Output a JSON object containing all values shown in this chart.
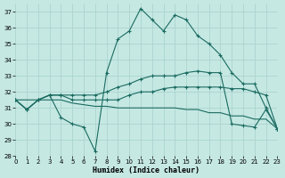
{
  "xlabel": "Humidex (Indice chaleur)",
  "bg_color": "#c5e8e3",
  "grid_color": "#a8d0cc",
  "line_color": "#1a6b60",
  "xlim": [
    0,
    23
  ],
  "ylim": [
    28,
    37.5
  ],
  "yticks": [
    28,
    29,
    30,
    31,
    32,
    33,
    34,
    35,
    36,
    37
  ],
  "xticks": [
    0,
    1,
    2,
    3,
    4,
    5,
    6,
    7,
    8,
    9,
    10,
    11,
    12,
    13,
    14,
    15,
    16,
    17,
    18,
    19,
    20,
    21,
    22,
    23
  ],
  "lines": [
    {
      "x": [
        0,
        1,
        2,
        3,
        4,
        5,
        6,
        7,
        8,
        9,
        10,
        11,
        12,
        13,
        14,
        15,
        16,
        17,
        18,
        19,
        20,
        21,
        22,
        23
      ],
      "y": [
        31.5,
        30.9,
        31.5,
        31.8,
        30.4,
        30.0,
        29.8,
        28.3,
        33.2,
        35.3,
        35.8,
        37.2,
        36.5,
        35.8,
        36.8,
        36.5,
        35.5,
        35.0,
        34.3,
        33.2,
        32.5,
        32.5,
        31.0,
        29.7
      ],
      "marker": true
    },
    {
      "x": [
        0,
        1,
        2,
        3,
        4,
        5,
        6,
        7,
        8,
        9,
        10,
        11,
        12,
        13,
        14,
        15,
        16,
        17,
        18,
        19,
        20,
        21,
        22,
        23
      ],
      "y": [
        31.5,
        30.9,
        31.5,
        31.8,
        31.8,
        31.8,
        31.8,
        31.8,
        32.0,
        32.3,
        32.5,
        32.8,
        33.0,
        33.0,
        33.0,
        33.2,
        33.3,
        33.2,
        33.2,
        30.0,
        29.9,
        29.8,
        30.9,
        29.7
      ],
      "marker": true
    },
    {
      "x": [
        0,
        1,
        2,
        3,
        4,
        5,
        6,
        7,
        8,
        9,
        10,
        11,
        12,
        13,
        14,
        15,
        16,
        17,
        18,
        19,
        20,
        21,
        22,
        23
      ],
      "y": [
        31.5,
        30.9,
        31.5,
        31.8,
        31.8,
        31.5,
        31.5,
        31.5,
        31.5,
        31.5,
        31.8,
        32.0,
        32.0,
        32.2,
        32.3,
        32.3,
        32.3,
        32.3,
        32.3,
        32.2,
        32.2,
        32.0,
        31.8,
        29.7
      ],
      "marker": true
    },
    {
      "x": [
        0,
        1,
        2,
        3,
        4,
        5,
        6,
        7,
        8,
        9,
        10,
        11,
        12,
        13,
        14,
        15,
        16,
        17,
        18,
        19,
        20,
        21,
        22,
        23
      ],
      "y": [
        31.5,
        31.5,
        31.5,
        31.5,
        31.5,
        31.3,
        31.2,
        31.1,
        31.1,
        31.0,
        31.0,
        31.0,
        31.0,
        31.0,
        31.0,
        30.9,
        30.9,
        30.7,
        30.7,
        30.5,
        30.5,
        30.3,
        30.3,
        29.7
      ],
      "marker": false
    }
  ]
}
